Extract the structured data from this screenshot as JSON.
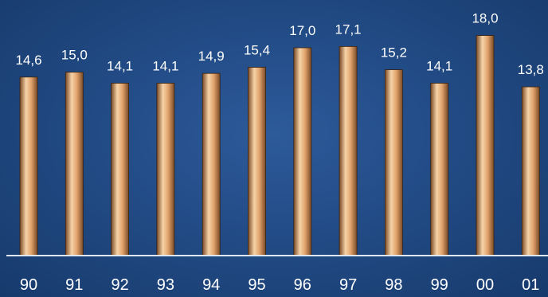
{
  "chart_data": {
    "type": "bar",
    "categories": [
      "90",
      "91",
      "92",
      "93",
      "94",
      "95",
      "96",
      "97",
      "98",
      "99",
      "00",
      "01"
    ],
    "values": [
      14.6,
      15.0,
      14.1,
      14.1,
      14.9,
      15.4,
      17.0,
      17.1,
      15.2,
      14.1,
      18.0,
      13.8
    ],
    "data_labels": [
      "14,6",
      "15,0",
      "14,1",
      "14,1",
      "14,9",
      "15,4",
      "17,0",
      "17,1",
      "15,2",
      "14,1",
      "18,0",
      "13,8"
    ],
    "ylim": [
      0,
      18.3
    ],
    "grid": false,
    "legend": "none",
    "colors": {
      "background": "#234d88",
      "bar_light": "#f6d3a8",
      "bar_mid": "#e0a26b",
      "bar_dark": "#7a4a26",
      "axis": "#dfe7f2",
      "text": "#ffffff"
    }
  }
}
